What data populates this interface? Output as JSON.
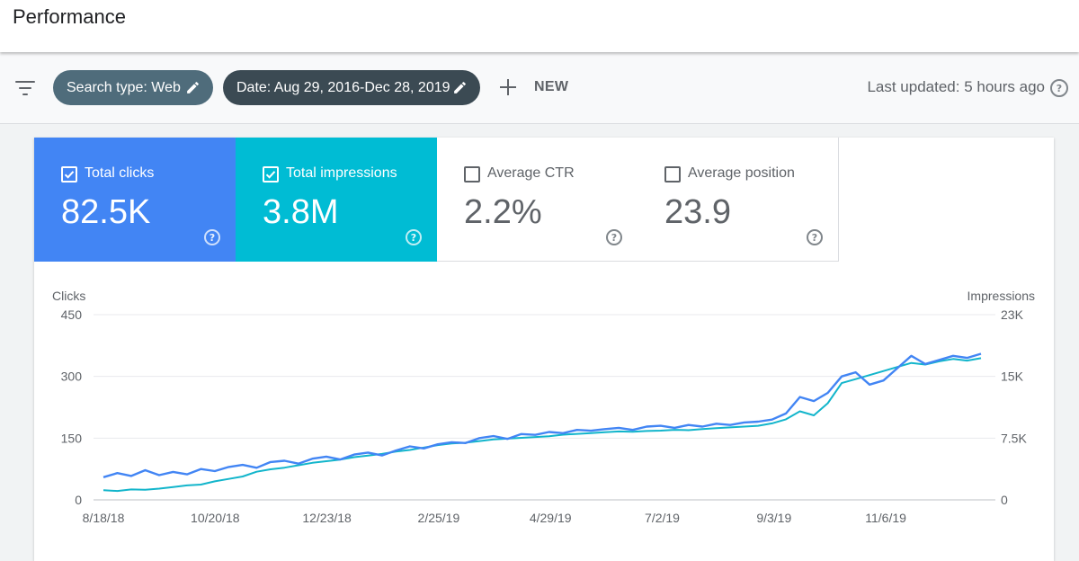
{
  "header": {
    "title": "Performance"
  },
  "filters": {
    "search_type": "Search type: Web",
    "date": "Date: Aug 29, 2016-Dec 28, 2019",
    "new_label": "NEW",
    "last_updated": "Last updated: 5 hours ago",
    "help_glyph": "?"
  },
  "metrics": [
    {
      "label": "Total clicks",
      "value": "82.5K",
      "checked": true,
      "color": "#4285f4"
    },
    {
      "label": "Total impressions",
      "value": "3.8M",
      "checked": true,
      "color": "#00bcd4"
    },
    {
      "label": "Average CTR",
      "value": "2.2%",
      "checked": false
    },
    {
      "label": "Average position",
      "value": "23.9",
      "checked": false
    }
  ],
  "chart_data": {
    "type": "line",
    "x_ticks": [
      "8/18/18",
      "10/20/18",
      "12/23/18",
      "2/25/19",
      "4/29/19",
      "7/2/19",
      "9/3/19",
      "11/6/19"
    ],
    "x_range": [
      "8/18/18",
      "12/28/19"
    ],
    "y_left": {
      "label": "Clicks",
      "ticks": [
        "0",
        "150",
        "300",
        "450"
      ],
      "range": [
        0,
        450
      ]
    },
    "y_right": {
      "label": "Impressions",
      "ticks": [
        "0",
        "7.5K",
        "15K",
        "23K"
      ],
      "range": [
        0,
        23000
      ]
    },
    "grid": true,
    "series": [
      {
        "name": "Clicks",
        "axis": "left",
        "color": "#4285f4",
        "values": [
          55,
          65,
          58,
          72,
          60,
          68,
          62,
          75,
          70,
          80,
          85,
          78,
          92,
          95,
          88,
          100,
          105,
          98,
          110,
          115,
          108,
          120,
          130,
          125,
          135,
          140,
          138,
          150,
          155,
          148,
          160,
          158,
          165,
          162,
          170,
          168,
          172,
          175,
          170,
          178,
          180,
          175,
          182,
          178,
          185,
          182,
          188,
          190,
          195,
          210,
          250,
          240,
          260,
          300,
          310,
          280,
          290,
          320,
          350,
          330,
          340,
          350,
          345,
          355
        ]
      },
      {
        "name": "Impressions",
        "axis": "right",
        "color": "#12b5cb",
        "values": [
          1200,
          1100,
          1300,
          1250,
          1400,
          1600,
          1800,
          1900,
          2300,
          2600,
          2900,
          3500,
          3800,
          4000,
          4300,
          4600,
          4800,
          5000,
          5300,
          5500,
          5700,
          6000,
          6200,
          6500,
          6800,
          7000,
          7100,
          7300,
          7500,
          7600,
          7700,
          7800,
          7900,
          8100,
          8200,
          8300,
          8400,
          8500,
          8450,
          8550,
          8600,
          8700,
          8650,
          8800,
          8900,
          9000,
          9100,
          9200,
          9500,
          10000,
          11000,
          10500,
          12000,
          14500,
          15000,
          15500,
          16000,
          16500,
          17000,
          16800,
          17200,
          17500,
          17300,
          17600
        ]
      }
    ]
  }
}
